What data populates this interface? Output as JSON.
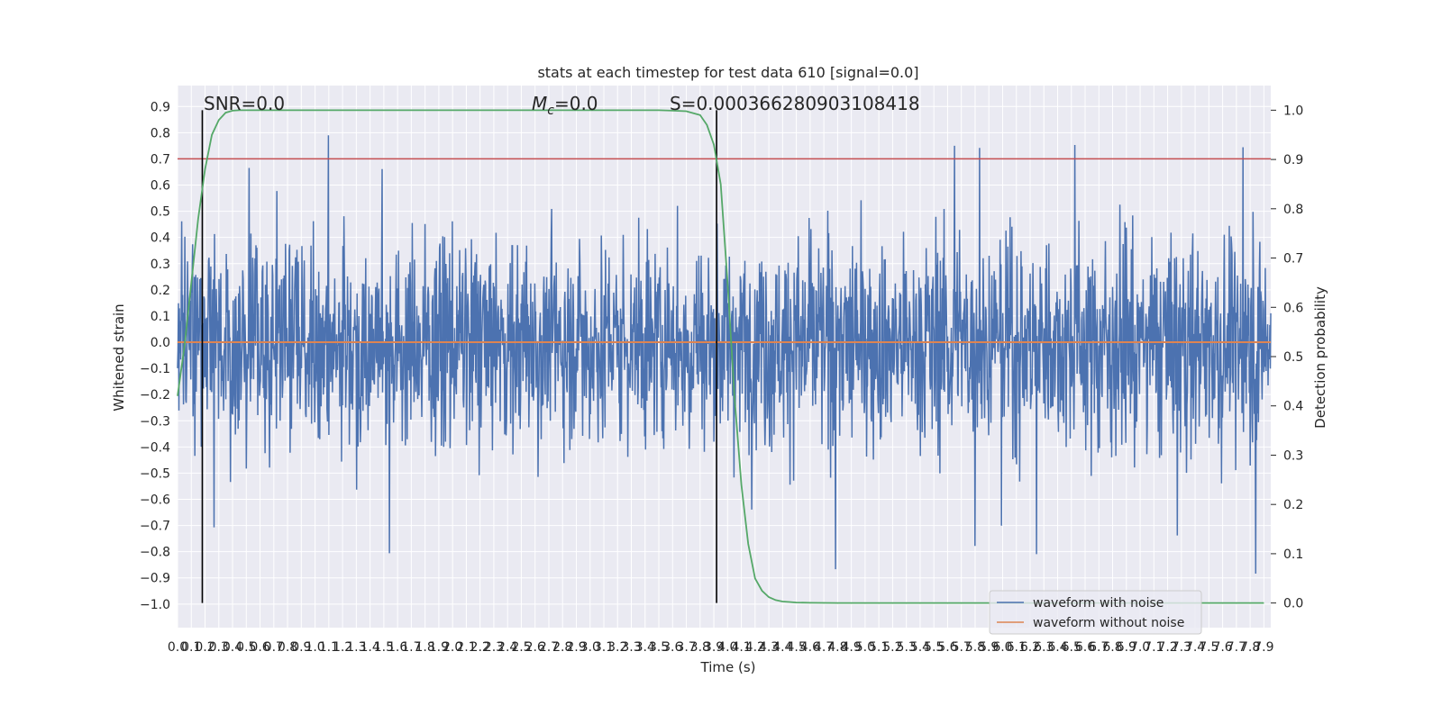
{
  "chart_data": {
    "type": "line",
    "title": "stats at each timestep for test data 610 [signal=0.0]",
    "xlabel": "Time (s)",
    "ylabel": "Whitened strain",
    "y2label": "Detection probability",
    "xlim": [
      0.0,
      7.95
    ],
    "ylim": [
      -1.09,
      0.98
    ],
    "y2lim": [
      -0.05,
      1.05
    ],
    "x_ticks": [
      "0.0",
      "0.1",
      "0.2",
      "0.3",
      "0.4",
      "0.5",
      "0.6",
      "0.7",
      "0.8",
      "0.9",
      "1.0",
      "1.1",
      "1.2",
      "1.3",
      "1.4",
      "1.5",
      "1.6",
      "1.7",
      "1.8",
      "1.9",
      "2.0",
      "2.1",
      "2.2",
      "2.3",
      "2.4",
      "2.5",
      "2.6",
      "2.7",
      "2.8",
      "2.9",
      "3.0",
      "3.1",
      "3.2",
      "3.3",
      "3.4",
      "3.5",
      "3.6",
      "3.7",
      "3.8",
      "3.9",
      "4.0",
      "4.1",
      "4.2",
      "4.3",
      "4.4",
      "4.5",
      "4.6",
      "4.7",
      "4.8",
      "4.9",
      "5.0",
      "5.1",
      "5.2",
      "5.3",
      "5.4",
      "5.5",
      "5.6",
      "5.7",
      "5.8",
      "5.9",
      "6.0",
      "6.1",
      "6.2",
      "6.3",
      "6.4",
      "6.5",
      "6.6",
      "6.7",
      "6.8",
      "6.9",
      "7.0",
      "7.1",
      "7.2",
      "7.3",
      "7.4",
      "7.5",
      "7.6",
      "7.7",
      "7.8",
      "7.9"
    ],
    "y_ticks": [
      "0.9",
      "0.8",
      "0.7",
      "0.6",
      "0.5",
      "0.4",
      "0.3",
      "0.2",
      "0.1",
      "0.0",
      "−0.1",
      "−0.2",
      "−0.3",
      "−0.4",
      "−0.5",
      "−0.6",
      "−0.7",
      "−0.8",
      "−0.9",
      "−1.0"
    ],
    "y2_ticks": [
      "1.0",
      "0.9",
      "0.8",
      "0.7",
      "0.6",
      "0.5",
      "0.4",
      "0.3",
      "0.2",
      "0.1",
      "0.0"
    ],
    "series": [
      {
        "name": "waveform with noise",
        "color": "#4c72b0",
        "envelope": "noise in approx. [-0.45, 0.55] with spikes to 0.88 / -0.99"
      },
      {
        "name": "waveform without noise",
        "color": "#dd8452",
        "values": "constant 0.0"
      },
      {
        "name": "",
        "axis": "y2",
        "color": "#55a868",
        "x": [
          0.0,
          0.05,
          0.1,
          0.15,
          0.2,
          0.25,
          0.3,
          0.35,
          0.4,
          0.45,
          0.5,
          0.6,
          0.8,
          1.0,
          1.5,
          2.0,
          2.5,
          3.0,
          3.5,
          3.6,
          3.7,
          3.8,
          3.85,
          3.9,
          3.95,
          4.0,
          4.05,
          4.1,
          4.15,
          4.2,
          4.25,
          4.3,
          4.35,
          4.4,
          4.45,
          4.5,
          4.6,
          4.8,
          5.0,
          6.0,
          7.0,
          7.9
        ],
        "values": [
          0.42,
          0.52,
          0.65,
          0.78,
          0.88,
          0.95,
          0.98,
          0.995,
          0.999,
          1.0,
          1.0,
          1.0,
          1.0,
          1.0,
          1.0,
          1.0,
          1.0,
          1.0,
          1.0,
          0.999,
          0.998,
          0.99,
          0.97,
          0.93,
          0.85,
          0.65,
          0.42,
          0.24,
          0.12,
          0.05,
          0.025,
          0.012,
          0.006,
          0.003,
          0.002,
          0.001,
          0.0005,
          0.0,
          0.0,
          0.0,
          0.0,
          0.0
        ]
      }
    ],
    "hlines": [
      {
        "y": 0.7,
        "color": "#c44e52"
      }
    ],
    "vlines": [
      {
        "x": 0.18,
        "color": "#000000"
      },
      {
        "x": 3.92,
        "color": "#000000"
      }
    ],
    "annotations": [
      "SNR=0.0",
      "=0.0",
      "S=0.000366280903108418"
    ],
    "legend_position": "lower-right",
    "grid": true
  }
}
